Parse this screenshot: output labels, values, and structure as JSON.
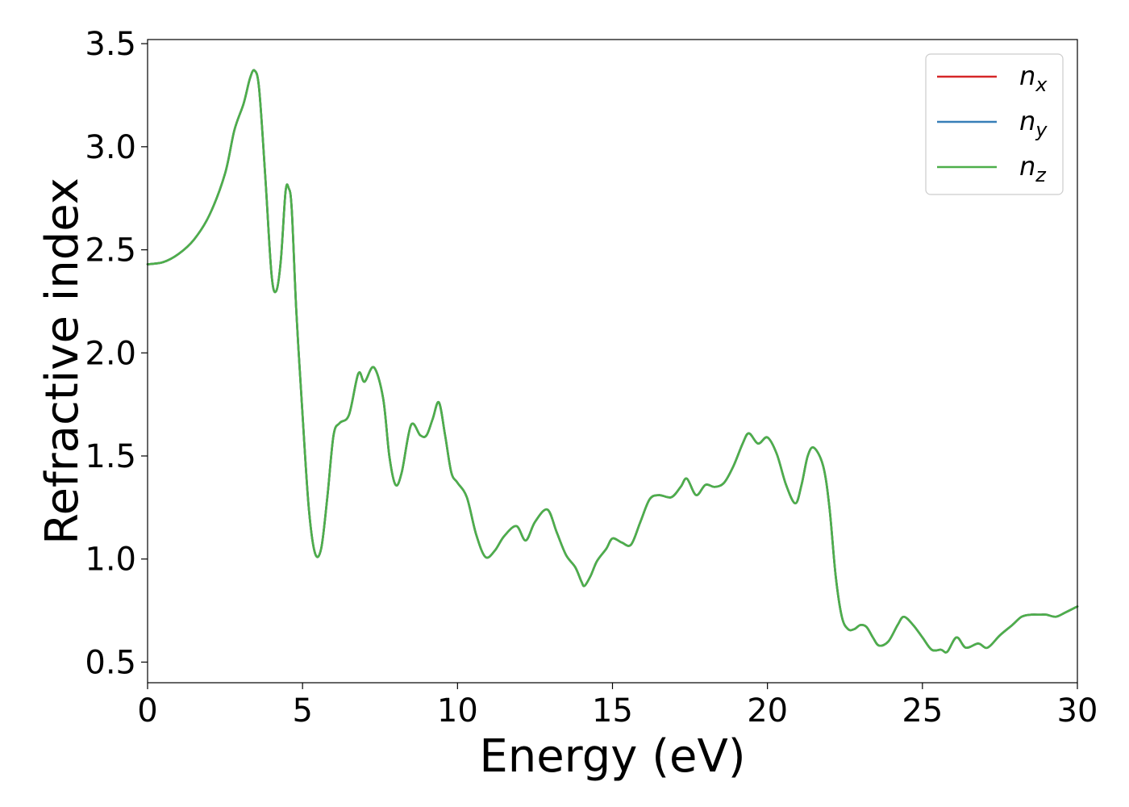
{
  "chart_data": {
    "type": "line",
    "xlabel": "Energy (eV)",
    "ylabel": "Refractive index",
    "xlim": [
      0,
      30
    ],
    "ylim": [
      0.4,
      3.52
    ],
    "x_ticks": [
      "0",
      "5",
      "10",
      "15",
      "20",
      "25",
      "30"
    ],
    "y_ticks": [
      "0.5",
      "1.0",
      "1.5",
      "2.0",
      "2.5",
      "3.0",
      "3.5"
    ],
    "grid": false,
    "legend_position": "top-right",
    "x": [
      0,
      0.5,
      1,
      1.5,
      2,
      2.5,
      2.8,
      3.1,
      3.3,
      3.45,
      3.6,
      3.8,
      4.0,
      4.15,
      4.3,
      4.45,
      4.55,
      4.65,
      4.8,
      5.0,
      5.2,
      5.4,
      5.6,
      5.8,
      6.0,
      6.2,
      6.5,
      6.8,
      7.0,
      7.3,
      7.6,
      7.8,
      8.0,
      8.2,
      8.5,
      8.8,
      9.0,
      9.2,
      9.4,
      9.6,
      9.8,
      10.0,
      10.3,
      10.6,
      10.9,
      11.2,
      11.5,
      11.9,
      12.2,
      12.5,
      12.9,
      13.2,
      13.5,
      13.8,
      14.0,
      14.1,
      14.3,
      14.5,
      14.8,
      15.0,
      15.3,
      15.6,
      15.9,
      16.2,
      16.5,
      16.9,
      17.2,
      17.4,
      17.7,
      18.0,
      18.3,
      18.6,
      18.9,
      19.2,
      19.4,
      19.7,
      20.0,
      20.3,
      20.6,
      20.9,
      21.1,
      21.3,
      21.5,
      21.8,
      22.0,
      22.2,
      22.4,
      22.6,
      22.8,
      23.0,
      23.2,
      23.4,
      23.6,
      23.9,
      24.2,
      24.4,
      24.7,
      25.0,
      25.3,
      25.6,
      25.8,
      26.1,
      26.4,
      26.8,
      27.1,
      27.5,
      27.9,
      28.2,
      28.5,
      28.8,
      29.0,
      29.3,
      29.6,
      30.0
    ],
    "series": [
      {
        "name": "n_x",
        "color": "#d62728",
        "values": [
          2.43,
          2.44,
          2.48,
          2.55,
          2.67,
          2.87,
          3.08,
          3.21,
          3.33,
          3.37,
          3.28,
          2.85,
          2.38,
          2.3,
          2.45,
          2.78,
          2.8,
          2.7,
          2.2,
          1.7,
          1.25,
          1.03,
          1.05,
          1.3,
          1.6,
          1.66,
          1.7,
          1.9,
          1.86,
          1.93,
          1.78,
          1.5,
          1.36,
          1.42,
          1.65,
          1.6,
          1.6,
          1.68,
          1.76,
          1.6,
          1.42,
          1.37,
          1.3,
          1.12,
          1.01,
          1.04,
          1.11,
          1.16,
          1.09,
          1.18,
          1.24,
          1.13,
          1.02,
          0.96,
          0.89,
          0.87,
          0.92,
          0.99,
          1.05,
          1.1,
          1.08,
          1.07,
          1.18,
          1.29,
          1.31,
          1.3,
          1.35,
          1.39,
          1.31,
          1.36,
          1.35,
          1.37,
          1.45,
          1.56,
          1.61,
          1.56,
          1.59,
          1.51,
          1.36,
          1.27,
          1.36,
          1.5,
          1.54,
          1.45,
          1.25,
          0.92,
          0.72,
          0.66,
          0.66,
          0.68,
          0.67,
          0.62,
          0.58,
          0.6,
          0.68,
          0.72,
          0.68,
          0.62,
          0.56,
          0.56,
          0.55,
          0.62,
          0.57,
          0.59,
          0.57,
          0.63,
          0.68,
          0.72,
          0.73,
          0.73,
          0.73,
          0.72,
          0.74,
          0.77
        ]
      },
      {
        "name": "n_y",
        "color": "#377eb8",
        "values": [
          2.43,
          2.44,
          2.48,
          2.55,
          2.67,
          2.87,
          3.08,
          3.21,
          3.33,
          3.37,
          3.28,
          2.85,
          2.38,
          2.3,
          2.45,
          2.78,
          2.8,
          2.7,
          2.2,
          1.7,
          1.25,
          1.03,
          1.05,
          1.3,
          1.6,
          1.66,
          1.7,
          1.9,
          1.86,
          1.93,
          1.78,
          1.5,
          1.36,
          1.42,
          1.65,
          1.6,
          1.6,
          1.68,
          1.76,
          1.6,
          1.42,
          1.37,
          1.3,
          1.12,
          1.01,
          1.04,
          1.11,
          1.16,
          1.09,
          1.18,
          1.24,
          1.13,
          1.02,
          0.96,
          0.89,
          0.87,
          0.92,
          0.99,
          1.05,
          1.1,
          1.08,
          1.07,
          1.18,
          1.29,
          1.31,
          1.3,
          1.35,
          1.39,
          1.31,
          1.36,
          1.35,
          1.37,
          1.45,
          1.56,
          1.61,
          1.56,
          1.59,
          1.51,
          1.36,
          1.27,
          1.36,
          1.5,
          1.54,
          1.45,
          1.25,
          0.92,
          0.72,
          0.66,
          0.66,
          0.68,
          0.67,
          0.62,
          0.58,
          0.6,
          0.68,
          0.72,
          0.68,
          0.62,
          0.56,
          0.56,
          0.55,
          0.62,
          0.57,
          0.59,
          0.57,
          0.63,
          0.68,
          0.72,
          0.73,
          0.73,
          0.73,
          0.72,
          0.74,
          0.77
        ]
      },
      {
        "name": "n_z",
        "color": "#4daf4a",
        "values": [
          2.43,
          2.44,
          2.48,
          2.55,
          2.67,
          2.87,
          3.08,
          3.21,
          3.33,
          3.37,
          3.28,
          2.85,
          2.38,
          2.3,
          2.45,
          2.78,
          2.8,
          2.7,
          2.2,
          1.7,
          1.25,
          1.03,
          1.05,
          1.3,
          1.6,
          1.66,
          1.7,
          1.9,
          1.86,
          1.93,
          1.78,
          1.5,
          1.36,
          1.42,
          1.65,
          1.6,
          1.6,
          1.68,
          1.76,
          1.6,
          1.42,
          1.37,
          1.3,
          1.12,
          1.01,
          1.04,
          1.11,
          1.16,
          1.09,
          1.18,
          1.24,
          1.13,
          1.02,
          0.96,
          0.89,
          0.87,
          0.92,
          0.99,
          1.05,
          1.1,
          1.08,
          1.07,
          1.18,
          1.29,
          1.31,
          1.3,
          1.35,
          1.39,
          1.31,
          1.36,
          1.35,
          1.37,
          1.45,
          1.56,
          1.61,
          1.56,
          1.59,
          1.51,
          1.36,
          1.27,
          1.36,
          1.5,
          1.54,
          1.45,
          1.25,
          0.92,
          0.72,
          0.66,
          0.66,
          0.68,
          0.67,
          0.62,
          0.58,
          0.6,
          0.68,
          0.72,
          0.68,
          0.62,
          0.56,
          0.56,
          0.55,
          0.62,
          0.57,
          0.59,
          0.57,
          0.63,
          0.68,
          0.72,
          0.73,
          0.73,
          0.73,
          0.72,
          0.74,
          0.77
        ]
      }
    ],
    "legend": [
      {
        "main": "n",
        "sub": "x"
      },
      {
        "main": "n",
        "sub": "y"
      },
      {
        "main": "n",
        "sub": "z"
      }
    ]
  }
}
